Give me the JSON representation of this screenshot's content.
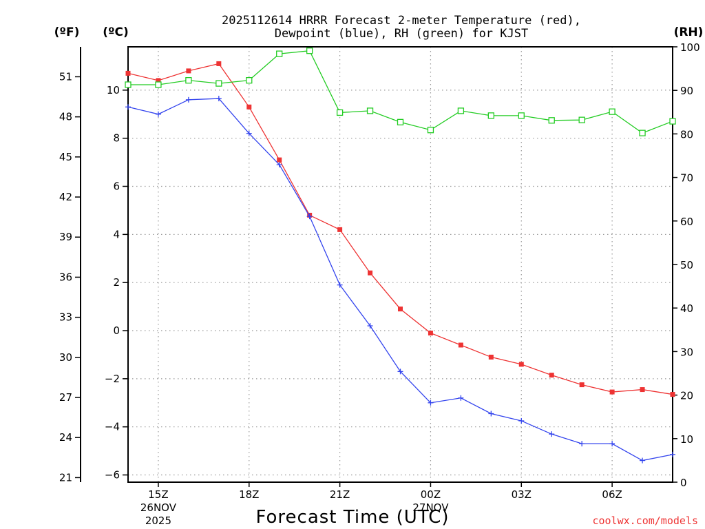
{
  "chart_data": {
    "type": "line",
    "title": "2025112614 HRRR Forecast 2-meter Temperature (red),",
    "subtitle": "Dewpoint (blue), RH (green) for KJST",
    "xlabel": "Forecast Time (UTC)",
    "units": {
      "fahrenheit": "(ºF)",
      "celsius": "(ºC)",
      "rh": "(RH)"
    },
    "x_hours": [
      14,
      15,
      16,
      17,
      18,
      19,
      20,
      21,
      22,
      23,
      24,
      25,
      26,
      27,
      28,
      29,
      30,
      31,
      32
    ],
    "x_range": [
      14,
      32
    ],
    "x_ticks": [
      {
        "hour": 15,
        "label": "15Z",
        "sub1": "26NOV",
        "sub2": "2025"
      },
      {
        "hour": 18,
        "label": "18Z"
      },
      {
        "hour": 21,
        "label": "21Z"
      },
      {
        "hour": 24,
        "label": "00Z",
        "sub1": "27NOV"
      },
      {
        "hour": 27,
        "label": "03Z"
      },
      {
        "hour": 30,
        "label": "06Z"
      }
    ],
    "y_celsius": {
      "range": [
        -6.3,
        11.8
      ],
      "ticks": [
        "10",
        "8",
        "6",
        "4",
        "2",
        "0",
        "−2",
        "−4",
        "−6"
      ],
      "tick_values": [
        10,
        8,
        6,
        4,
        2,
        0,
        -2,
        -4,
        -6
      ]
    },
    "y_fahrenheit": {
      "ticks": [
        "51",
        "48",
        "45",
        "42",
        "39",
        "36",
        "33",
        "30",
        "27",
        "24",
        "21"
      ],
      "tick_values": [
        51,
        48,
        45,
        42,
        39,
        36,
        33,
        30,
        27,
        24,
        21
      ]
    },
    "y_rh": {
      "range": [
        0,
        100
      ],
      "ticks": [
        "100",
        "90",
        "80",
        "70",
        "60",
        "50",
        "40",
        "30",
        "20",
        "10",
        "0"
      ],
      "tick_values": [
        100,
        90,
        80,
        70,
        60,
        50,
        40,
        30,
        20,
        10,
        0
      ]
    },
    "series": [
      {
        "name": "2-meter Temperature",
        "color": "#ee3333",
        "axis": "celsius",
        "marker": "filled-square",
        "values": [
          10.7,
          10.4,
          10.8,
          11.1,
          9.3,
          7.1,
          4.8,
          4.2,
          2.4,
          0.9,
          -0.1,
          -0.6,
          -1.1,
          -1.4,
          -1.85,
          -2.25,
          -2.55,
          -2.45,
          -2.65
        ]
      },
      {
        "name": "Dewpoint",
        "color": "#3344ee",
        "axis": "celsius",
        "marker": "plus",
        "values": [
          9.3,
          9.0,
          9.6,
          9.65,
          8.2,
          6.9,
          4.75,
          1.9,
          0.2,
          -1.7,
          -3.0,
          -2.8,
          -3.45,
          -3.75,
          -4.3,
          -4.7,
          -4.7,
          -5.4,
          -5.15
        ]
      },
      {
        "name": "RH",
        "color": "#22cc22",
        "axis": "rh",
        "marker": "open-square",
        "values": [
          91.3,
          91.3,
          92.3,
          91.6,
          92.3,
          98.4,
          99.1,
          84.9,
          85.3,
          82.7,
          80.9,
          85.3,
          84.2,
          84.2,
          83.1,
          83.2,
          85.1,
          80.2,
          82.9
        ]
      }
    ]
  },
  "credit": "coolwx.com/models"
}
